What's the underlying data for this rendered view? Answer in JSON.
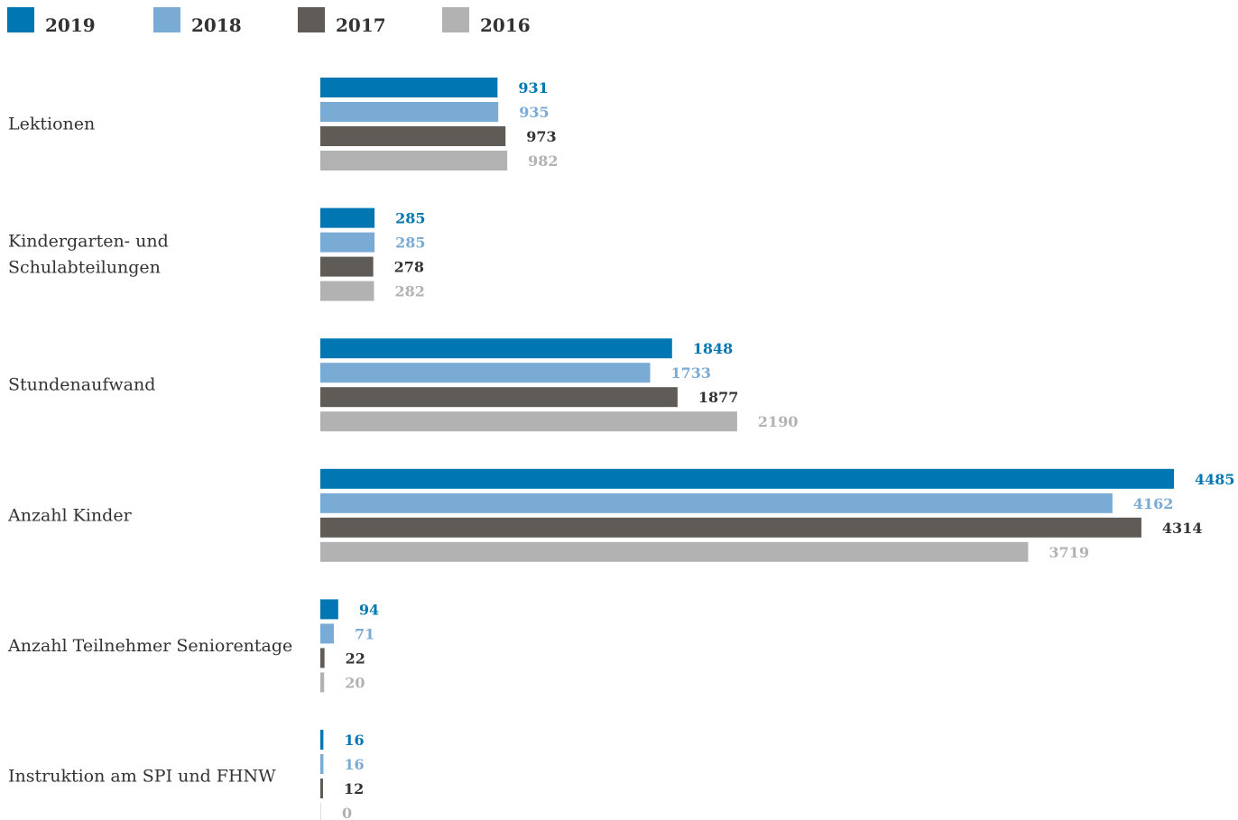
{
  "chart_data": {
    "type": "bar",
    "orientation": "horizontal",
    "title": "",
    "xlabel": "",
    "ylabel": "",
    "grid": false,
    "legend_position": "top-left",
    "xlim": [
      0,
      4485
    ],
    "categories": [
      [
        "Lektionen"
      ],
      [
        "Kindergarten- und",
        "Schulabteilungen"
      ],
      [
        "Stundenaufwand"
      ],
      [
        "Anzahl Kinder"
      ],
      [
        "Anzahl Teilnehmer Seniorentage"
      ],
      [
        "Instruktion am SPI und FHNW"
      ]
    ],
    "series": [
      {
        "name": "2019",
        "color": "#0077b2",
        "values": [
          931,
          285,
          1848,
          4485,
          94,
          16
        ]
      },
      {
        "name": "2018",
        "color": "#7aabd4",
        "values": [
          935,
          285,
          1733,
          4162,
          71,
          16
        ]
      },
      {
        "name": "2017",
        "color": "#5f5c57",
        "values": [
          973,
          278,
          1877,
          4314,
          22,
          12
        ]
      },
      {
        "name": "2016",
        "color": "#b2b2b2",
        "values": [
          982,
          282,
          2190,
          3719,
          20,
          0
        ]
      }
    ]
  }
}
